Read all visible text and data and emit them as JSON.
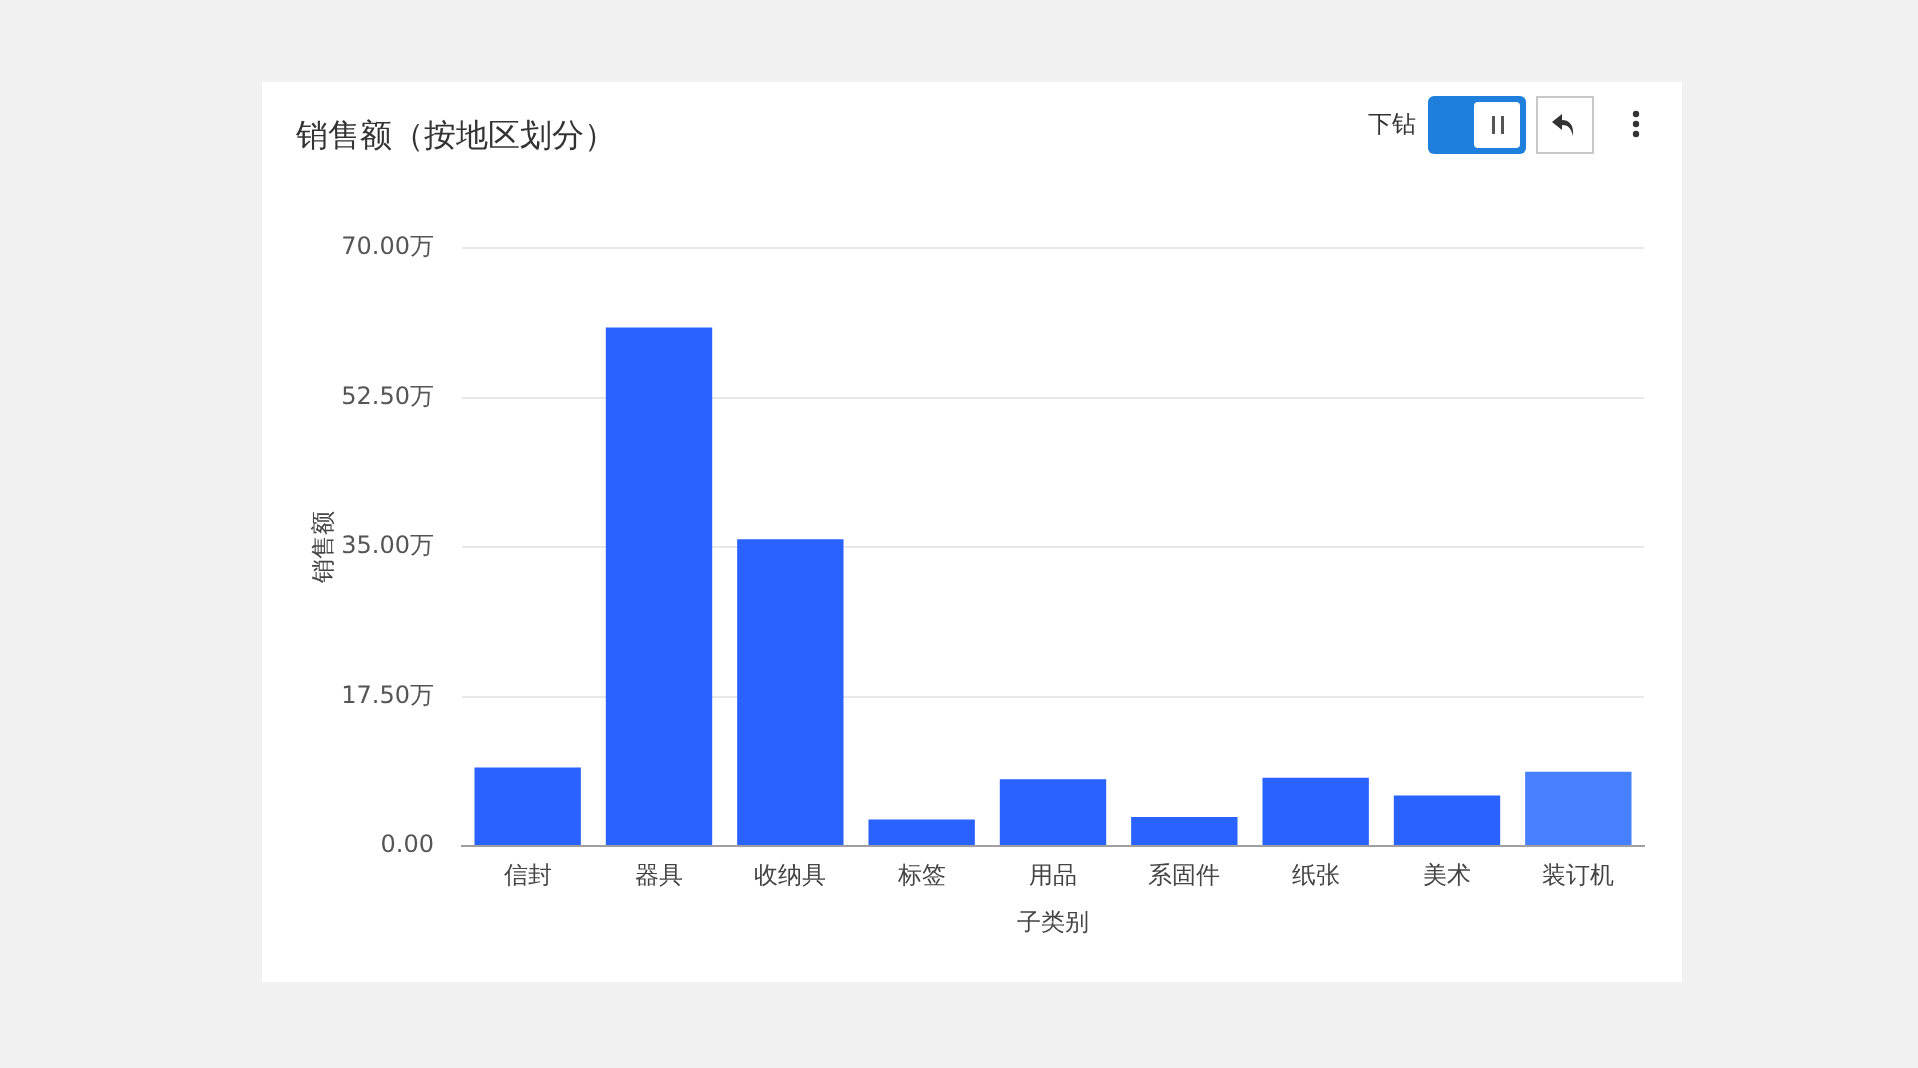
{
  "chart_data": {
    "type": "bar",
    "title": "销售额（按地区划分）",
    "xlabel": "子类别",
    "ylabel": "销售额",
    "categories": [
      "信封",
      "器具",
      "收纳具",
      "标签",
      "用品",
      "系固件",
      "纸张",
      "美术",
      "装订机"
    ],
    "values": [
      9.2,
      60.7,
      35.9,
      3.1,
      7.8,
      3.4,
      8.0,
      5.9,
      8.7
    ],
    "colors": [
      "#2962ff",
      "#2962ff",
      "#2962ff",
      "#2962ff",
      "#2962ff",
      "#2962ff",
      "#2962ff",
      "#2962ff",
      "#4680ff"
    ],
    "ylim": [
      0,
      70
    ],
    "yticks": [
      {
        "value": 0,
        "label": "0.00"
      },
      {
        "value": 17.5,
        "label": "17.50万"
      },
      {
        "value": 35,
        "label": "35.00万"
      },
      {
        "value": 52.5,
        "label": "52.50万"
      },
      {
        "value": 70,
        "label": "70.00万"
      }
    ],
    "grid": "y",
    "annotations": [
      "下钻"
    ]
  }
}
